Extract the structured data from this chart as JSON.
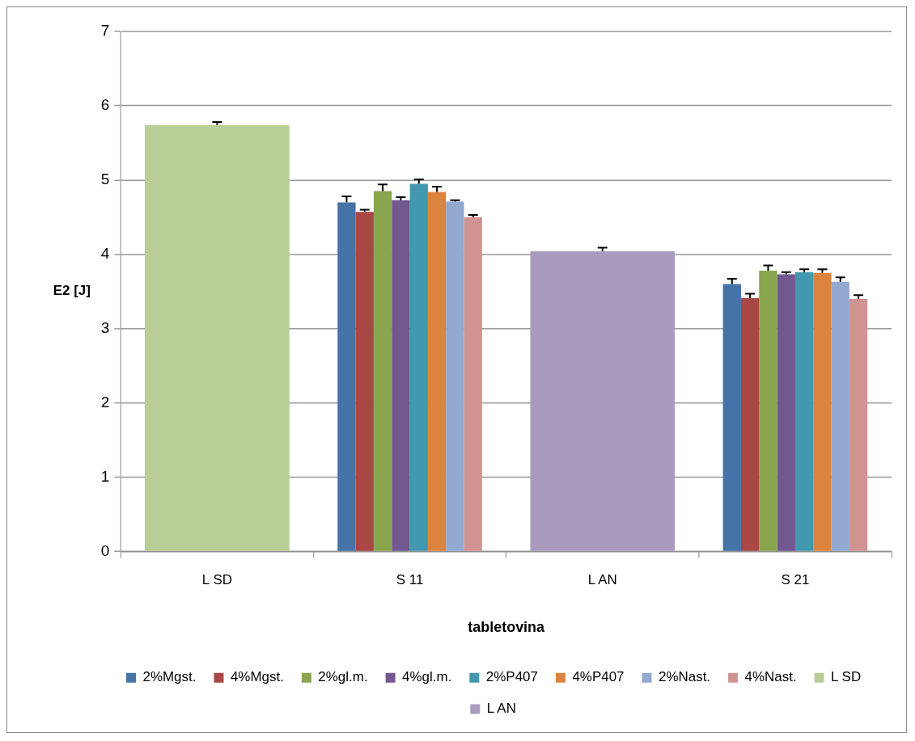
{
  "chart_data": {
    "type": "bar",
    "xlabel": "tabletovina",
    "ylabel": "E2 [J]",
    "categories": [
      "L SD",
      "S 11",
      "L AN",
      "S 21"
    ],
    "ylim": [
      0,
      7
    ],
    "yticks": [
      0,
      1,
      2,
      3,
      4,
      5,
      6,
      7
    ],
    "grid": "y",
    "legend": "bottom",
    "series": [
      {
        "name": "2%Mgst.",
        "color": "#4572a7",
        "values": [
          null,
          4.7,
          null,
          3.6
        ],
        "errors": [
          null,
          [
            4.7,
            4.78
          ],
          null,
          [
            3.6,
            3.67
          ]
        ]
      },
      {
        "name": "4%Mgst.",
        "color": "#aa4643",
        "values": [
          null,
          4.57,
          null,
          3.41
        ],
        "errors": [
          null,
          [
            4.57,
            4.6
          ],
          null,
          [
            3.41,
            3.47
          ]
        ]
      },
      {
        "name": "2%gl.m.",
        "color": "#89a54e",
        "values": [
          null,
          4.85,
          null,
          3.78
        ],
        "errors": [
          null,
          [
            4.85,
            4.94
          ],
          null,
          [
            3.78,
            3.85
          ]
        ]
      },
      {
        "name": "4%gl.m.",
        "color": "#71588f",
        "values": [
          null,
          4.73,
          null,
          3.73
        ],
        "errors": [
          null,
          [
            4.73,
            4.77
          ],
          null,
          [
            3.73,
            3.76
          ]
        ]
      },
      {
        "name": "2%P407",
        "color": "#4198af",
        "values": [
          null,
          4.95,
          null,
          3.76
        ],
        "errors": [
          null,
          [
            4.95,
            5.01
          ],
          null,
          [
            3.76,
            3.8
          ]
        ]
      },
      {
        "name": "4%P407",
        "color": "#db843d",
        "values": [
          null,
          4.84,
          null,
          3.75
        ],
        "errors": [
          null,
          [
            4.84,
            4.91
          ],
          null,
          [
            3.75,
            3.8
          ]
        ]
      },
      {
        "name": "2%Nast.",
        "color": "#93a9cf",
        "values": [
          null,
          4.71,
          null,
          3.63
        ],
        "errors": [
          null,
          [
            4.71,
            4.73
          ],
          null,
          [
            3.63,
            3.69
          ]
        ]
      },
      {
        "name": "4%Nast.",
        "color": "#d19392",
        "values": [
          null,
          4.5,
          null,
          3.4
        ],
        "errors": [
          null,
          [
            4.5,
            4.53
          ],
          null,
          [
            3.4,
            3.45
          ]
        ]
      },
      {
        "name": "L SD",
        "color": "#b9cd96",
        "values": [
          5.74,
          null,
          null,
          null
        ],
        "errors": [
          [
            5.74,
            5.78
          ],
          null,
          null,
          null
        ]
      },
      {
        "name": "L AN",
        "color": "#a99bbd",
        "values": [
          null,
          null,
          4.04,
          null
        ],
        "errors": [
          null,
          null,
          [
            4.04,
            4.09
          ],
          null
        ]
      }
    ]
  }
}
